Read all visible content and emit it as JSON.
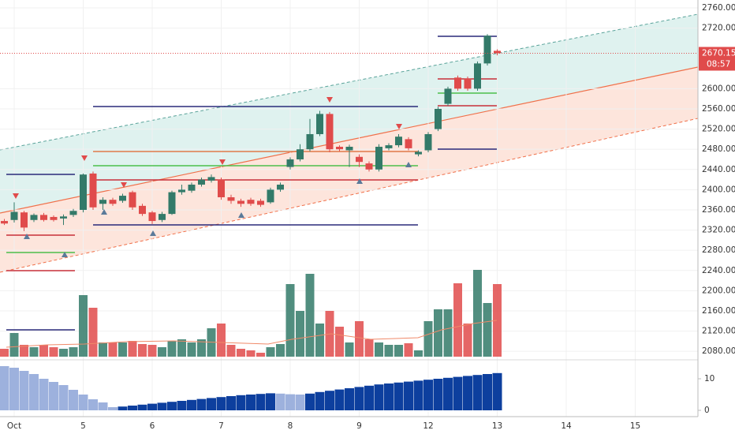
{
  "chart_data": {
    "type": "candlestick",
    "x": [
      0,
      1,
      2,
      3,
      4,
      5,
      6,
      7,
      8,
      9,
      10,
      11,
      12,
      13,
      14,
      15,
      16,
      17,
      18,
      19,
      20,
      21,
      22,
      23,
      24,
      25,
      26,
      27,
      28,
      29,
      30,
      31,
      32,
      33,
      34,
      35,
      36,
      37,
      38,
      39,
      40,
      41,
      42,
      43,
      44,
      45,
      46,
      47,
      48,
      49,
      50
    ],
    "open": [
      2338,
      2340,
      2355,
      2340,
      2350,
      2346,
      2343,
      2350,
      2360,
      2432,
      2372,
      2380,
      2378,
      2395,
      2368,
      2355,
      2340,
      2352,
      2395,
      2398,
      2410,
      2418,
      2420,
      2385,
      2378,
      2380,
      2378,
      2375,
      2400,
      2445,
      2460,
      2480,
      2510,
      2550,
      2485,
      2478,
      2465,
      2452,
      2440,
      2482,
      2488,
      2500,
      2470,
      2478,
      2520,
      2570,
      2622,
      2620,
      2600,
      2650,
      2675
    ],
    "high": [
      2342,
      2375,
      2358,
      2353,
      2354,
      2349,
      2351,
      2362,
      2432,
      2436,
      2385,
      2384,
      2392,
      2398,
      2372,
      2358,
      2356,
      2398,
      2410,
      2414,
      2424,
      2430,
      2424,
      2390,
      2382,
      2384,
      2382,
      2404,
      2414,
      2464,
      2490,
      2540,
      2556,
      2554,
      2488,
      2489,
      2470,
      2456,
      2490,
      2492,
      2510,
      2504,
      2478,
      2514,
      2564,
      2604,
      2626,
      2624,
      2654,
      2708,
      2678
    ],
    "low": [
      2330,
      2335,
      2318,
      2336,
      2337,
      2337,
      2330,
      2346,
      2355,
      2360,
      2360,
      2368,
      2374,
      2360,
      2348,
      2332,
      2336,
      2350,
      2390,
      2394,
      2406,
      2414,
      2380,
      2372,
      2366,
      2368,
      2366,
      2372,
      2396,
      2440,
      2456,
      2476,
      2506,
      2474,
      2476,
      2445,
      2445,
      2436,
      2436,
      2478,
      2484,
      2478,
      2466,
      2474,
      2516,
      2566,
      2596,
      2596,
      2596,
      2646,
      2666
    ],
    "close": [
      2333,
      2356,
      2325,
      2350,
      2340,
      2340,
      2347,
      2358,
      2430,
      2365,
      2380,
      2372,
      2388,
      2365,
      2352,
      2338,
      2352,
      2395,
      2400,
      2410,
      2420,
      2425,
      2385,
      2378,
      2372,
      2372,
      2370,
      2400,
      2410,
      2460,
      2480,
      2510,
      2550,
      2480,
      2480,
      2485,
      2455,
      2440,
      2485,
      2488,
      2505,
      2482,
      2475,
      2510,
      2560,
      2600,
      2600,
      2600,
      2650,
      2705,
      2670.15
    ],
    "up_color": "#337a69",
    "down_color": "#e04b4b",
    "xlim": [
      -0.44,
      70.36
    ],
    "xticks": [
      {
        "value": 1,
        "label": "Oct"
      },
      {
        "value": 8,
        "label": "5"
      },
      {
        "value": 15,
        "label": "6"
      },
      {
        "value": 22,
        "label": "7"
      },
      {
        "value": 29,
        "label": "8"
      },
      {
        "value": 36,
        "label": "9"
      },
      {
        "value": 43,
        "label": "12"
      },
      {
        "value": 50,
        "label": "13"
      },
      {
        "value": 57,
        "label": "14"
      },
      {
        "value": 64,
        "label": "15"
      }
    ],
    "ylim": [
      2063.1,
      2775.6
    ],
    "yticks": [
      {
        "value": 2080,
        "label": "2080.00"
      },
      {
        "value": 2120,
        "label": "2120.00"
      },
      {
        "value": 2160,
        "label": "2160.00"
      },
      {
        "value": 2200,
        "label": "2200.00"
      },
      {
        "value": 2240,
        "label": "2240.00"
      },
      {
        "value": 2280,
        "label": "2280.00"
      },
      {
        "value": 2320,
        "label": "2320.00"
      },
      {
        "value": 2360,
        "label": "2360.00"
      },
      {
        "value": 2400,
        "label": "2400.00"
      },
      {
        "value": 2440,
        "label": "2440.00"
      },
      {
        "value": 2480,
        "label": "2480.00"
      },
      {
        "value": 2520,
        "label": "2520.00"
      },
      {
        "value": 2560,
        "label": "2560.00"
      },
      {
        "value": 2600,
        "label": "2600.00"
      },
      {
        "value": 2720,
        "label": "2720.00"
      },
      {
        "value": 2760,
        "label": "2760.00"
      }
    ],
    "last_price": 2670.15,
    "countdown": "08:57",
    "volume": {
      "values": [
        10,
        30,
        15,
        12,
        15,
        12,
        10,
        12,
        78,
        62,
        18,
        18,
        18,
        20,
        16,
        15,
        12,
        20,
        22,
        18,
        22,
        36,
        42,
        15,
        10,
        8,
        5,
        12,
        16,
        92,
        58,
        105,
        42,
        58,
        38,
        18,
        45,
        22,
        18,
        15,
        15,
        17,
        8,
        45,
        60,
        60,
        93,
        42,
        110,
        68,
        92
      ],
      "ylim": [
        0,
        112
      ]
    },
    "indicator": {
      "values": [
        14,
        13.5,
        12.5,
        11.5,
        10,
        9,
        8,
        6.5,
        5,
        3.5,
        2.5,
        1,
        1.2,
        1.5,
        1.8,
        2.1,
        2.4,
        2.7,
        3,
        3.3,
        3.6,
        3.9,
        4.2,
        4.5,
        4.8,
        5,
        5.2,
        5.4,
        5.3,
        5.1,
        5,
        5.3,
        5.8,
        6.2,
        6.6,
        7,
        7.4,
        7.8,
        8.2,
        8.5,
        8.8,
        9.1,
        9.4,
        9.7,
        10,
        10.3,
        10.6,
        10.9,
        11.2,
        11.5,
        11.8
      ],
      "rising_color": "#0d3f9e",
      "falling_color": "#9db1dd",
      "ylim": [
        0,
        15
      ],
      "yticks": [
        0,
        10
      ]
    }
  }
}
